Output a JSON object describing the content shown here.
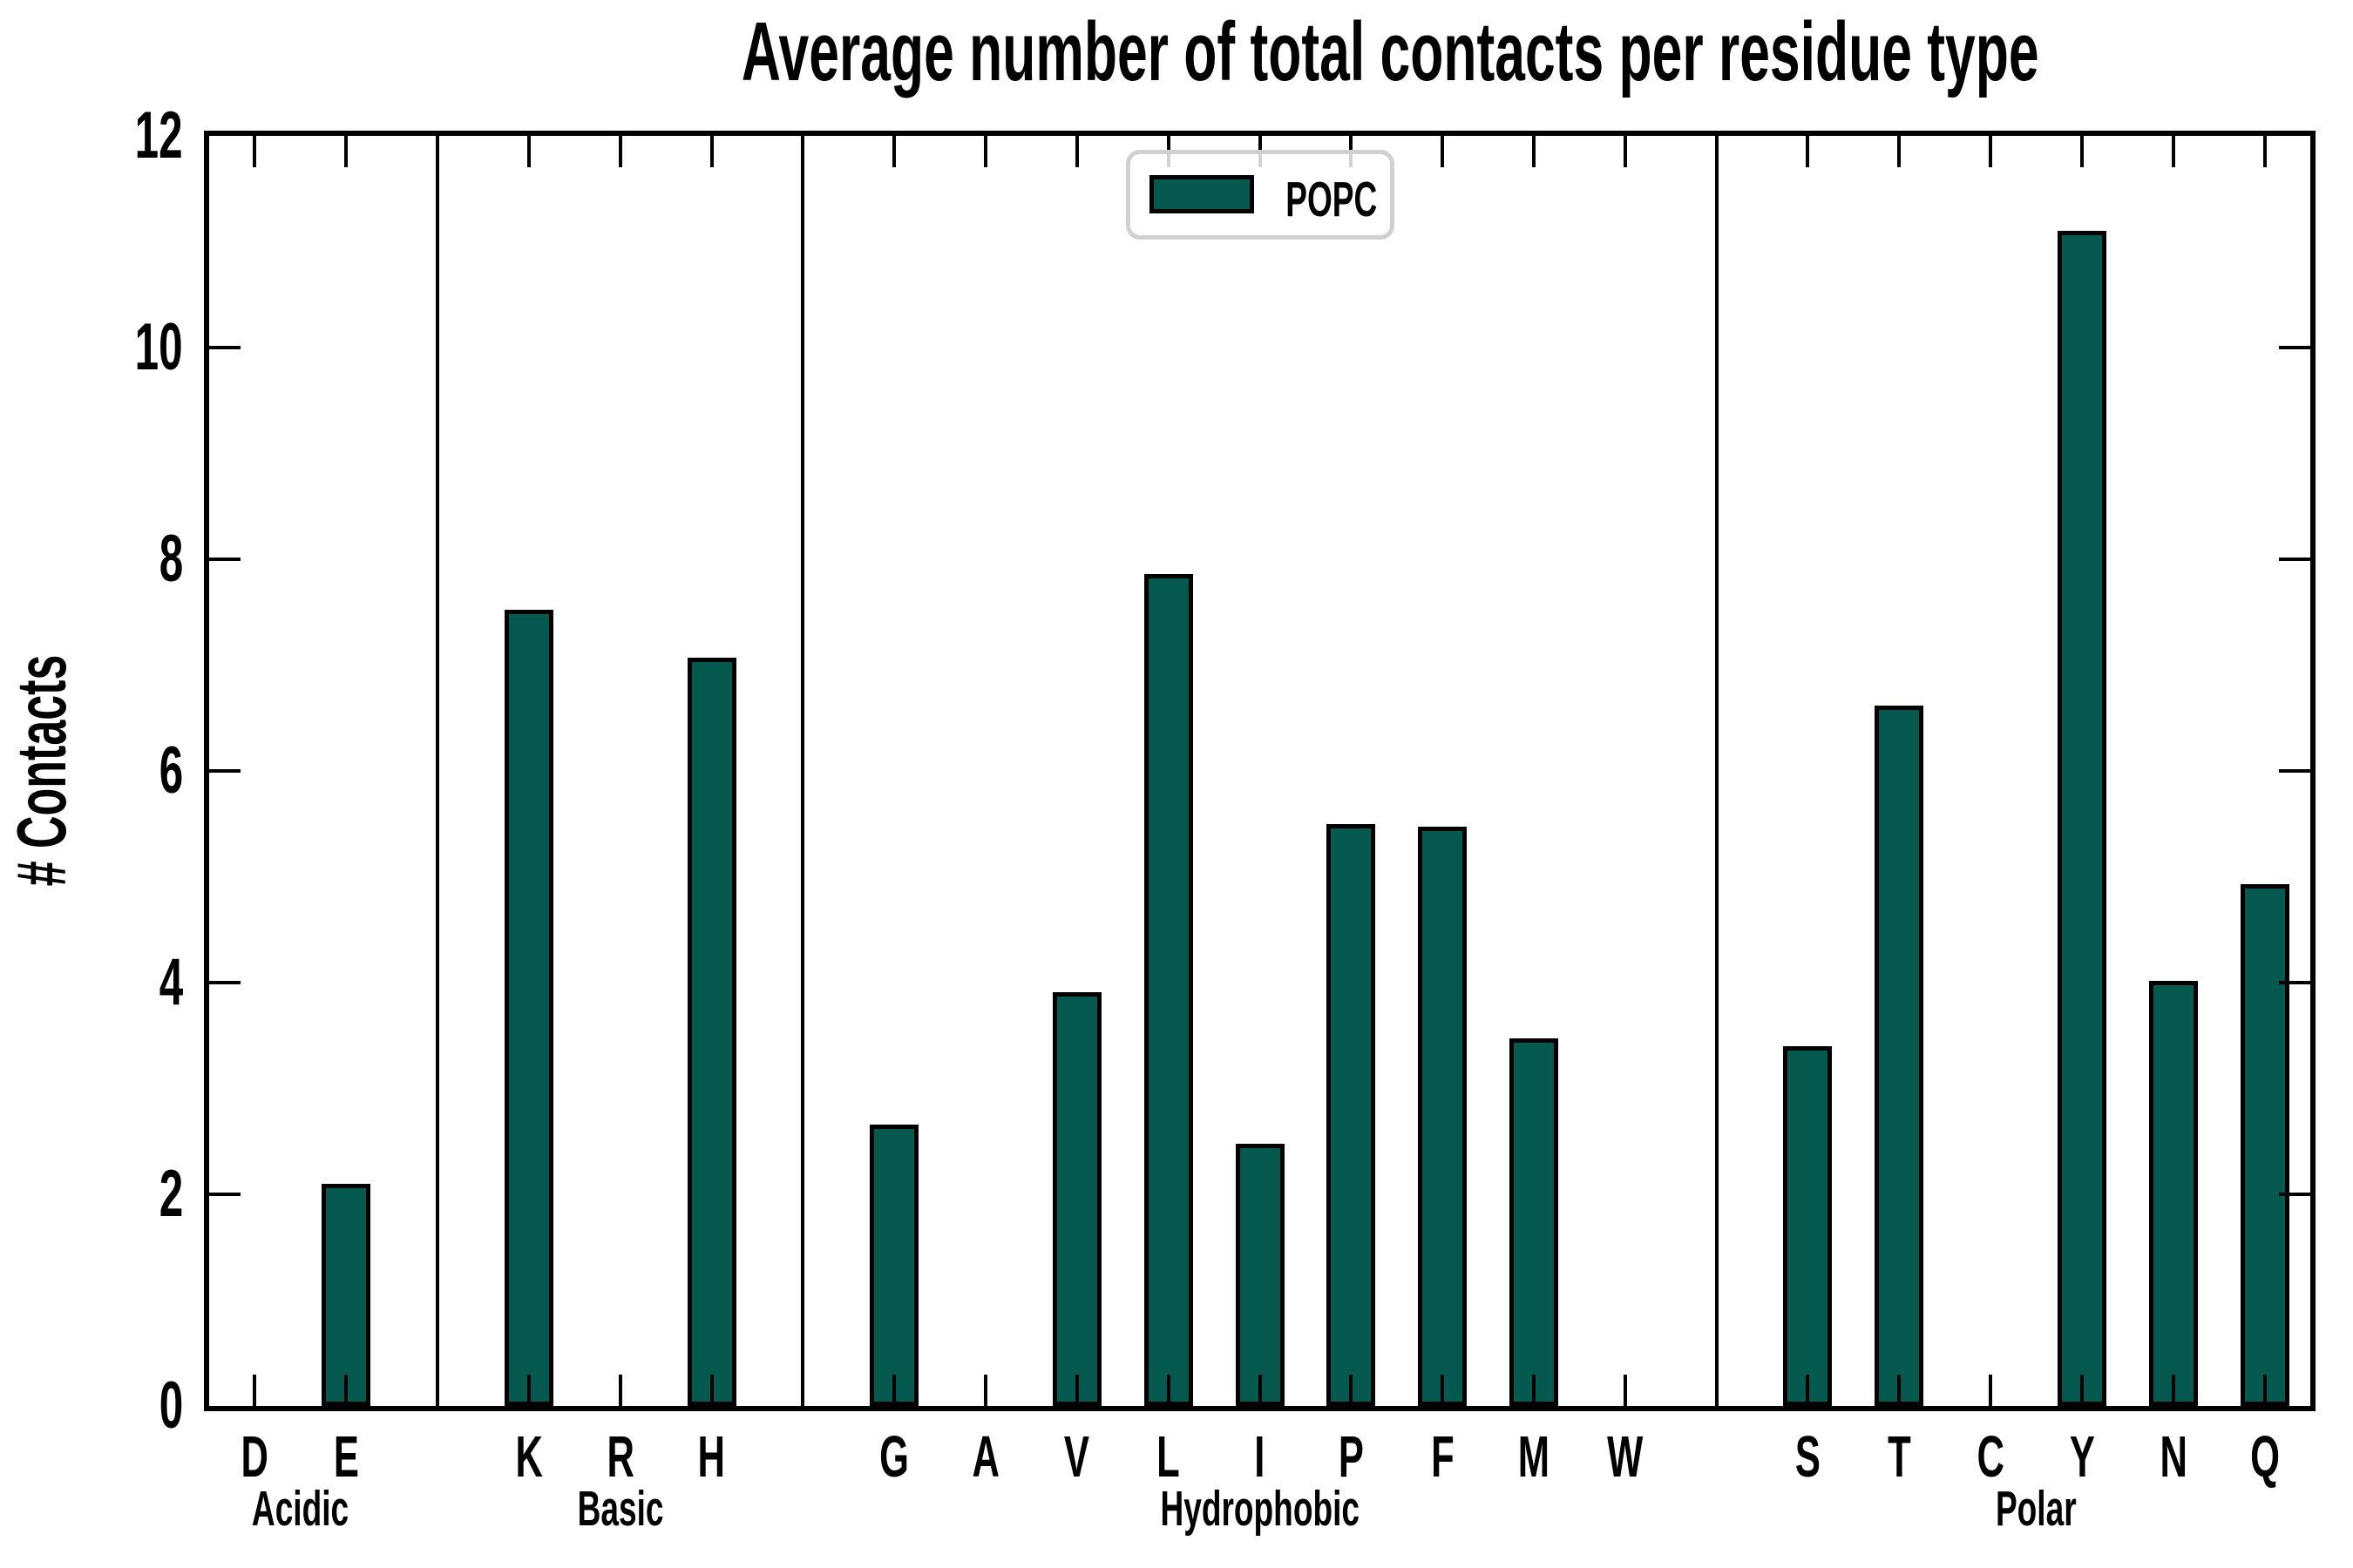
{
  "title": "Average number of total contacts per residue type",
  "legend": {
    "label": "POPC",
    "swatch_color": "#06594e"
  },
  "colors": {
    "bar_fill": "#06594e",
    "bar_edge": "#000000",
    "axis": "#000000",
    "legend_border": "#d0d0d0"
  },
  "chart_data": {
    "type": "bar",
    "title": "Average number of total contacts per residue type",
    "xlabel": "",
    "ylabel": "# Contacts",
    "ylim": [
      0,
      12
    ],
    "yticks": [
      0,
      2,
      4,
      6,
      8,
      10,
      12
    ],
    "grid": false,
    "legend_entries": [
      "POPC"
    ],
    "legend_position": "upper center",
    "bar_color": "#06594e",
    "bar_edge_color": "#000000",
    "groups": [
      {
        "label": "Acidic",
        "categories": [
          "D",
          "E"
        ],
        "values": [
          0,
          2.1
        ]
      },
      {
        "label": "Basic",
        "categories": [
          "K",
          "R",
          "H"
        ],
        "values": [
          7.52,
          0,
          7.07
        ]
      },
      {
        "label": "Hydrophobic",
        "categories": [
          "G",
          "A",
          "V",
          "L",
          "I",
          "P",
          "F",
          "M",
          "W"
        ],
        "values": [
          2.66,
          0,
          3.91,
          7.86,
          2.48,
          5.5,
          5.47,
          3.47,
          0
        ]
      },
      {
        "label": "Polar",
        "categories": [
          "S",
          "T",
          "C",
          "Y",
          "N",
          "Q"
        ],
        "values": [
          3.4,
          6.62,
          0,
          11.1,
          4.02,
          4.93
        ]
      }
    ]
  }
}
